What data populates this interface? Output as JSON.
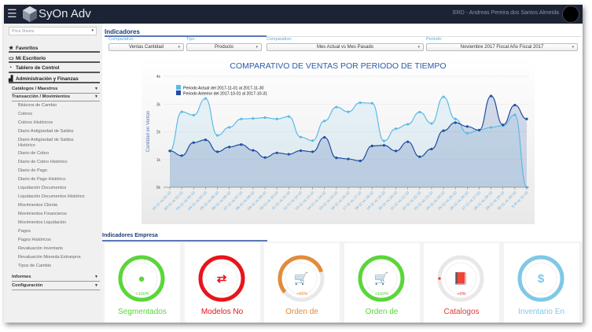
{
  "topbar": {
    "brand": "SyOn Adv",
    "user": "ERD - Andreas Pereira dos Santos Almeida",
    "menu_icon": "hamburger-icon"
  },
  "sidebar": {
    "select": "Price Sheets",
    "nav": [
      {
        "label": "Favoritos",
        "icon": "star-icon"
      },
      {
        "label": "Mi Escritorio",
        "icon": "monitor-icon"
      },
      {
        "label": "Tablero de Control",
        "icon": "gauge-icon"
      },
      {
        "label": "Administración y Finanzas",
        "icon": "chart-icon"
      }
    ],
    "groups": [
      {
        "label": "Catálogos / Maestros"
      },
      {
        "label": "Transacción / Movimientos"
      }
    ],
    "items": [
      "Bitácora de Cambio",
      "Cobros",
      "Cobros Históricos",
      "Diario Antigüedad de Saldos",
      "Diario Antigüedad de Saldos Histórico",
      "Diario de Cobro",
      "Diario de Cobro Histórico",
      "Diario de Pago",
      "Diario de Pago Histórico",
      "Liquidación Documentos",
      "Liquidación Documentos Histórico",
      "Movimientos Cliente",
      "Movimientos Financieros",
      "Movimientos Liquidación",
      "Pagos",
      "Pagos Históricos",
      "Revaluación Inventario",
      "Revaluación Moneda Extranjera",
      "Tipos de Cambio"
    ],
    "bottom": [
      {
        "label": "Informes"
      },
      {
        "label": "Configuración"
      }
    ]
  },
  "indicadores": {
    "title": "Indicadores",
    "filters": [
      {
        "label": "Comparativo:",
        "value": "Ventas Cantidad"
      },
      {
        "label": "Tipo :",
        "value": "Producto"
      },
      {
        "label": "Comparativo:",
        "value": "Mes Actual vs Mes Pasado"
      },
      {
        "label": "Periodo:",
        "value": "Noviembre 2017 Fiscal Año Fiscal 2017"
      }
    ]
  },
  "chart_data": {
    "type": "area",
    "title": "COMPARATIVO DE VENTAS POR PERIODO DE TIEMPO",
    "ylabel": "Cantidad en Ventas",
    "xlabel": "",
    "ylim": [
      0,
      4000
    ],
    "yticks": [
      "0k",
      "1k",
      "2k",
      "3k",
      "4k"
    ],
    "legend": "top-left",
    "grid": true,
    "categories": [
      "01-11 vs 01-10",
      "02-11 vs 02-10",
      "03-11 vs 03-10",
      "04-11 vs 04-10",
      "05-11 vs 05-10",
      "06-11 vs 06-10",
      "07-11 vs 07-10",
      "08-11 vs 08-10",
      "09-11 vs 09-10",
      "10-11 vs 10-10",
      "11-11 vs 11-10",
      "12-11 vs 12-10",
      "13-11 vs 13-10",
      "14-11 vs 14-10",
      "15-11 vs 15-10",
      "16-11 vs 16-10",
      "17-11 vs 17-10",
      "18-11 vs 18-10",
      "19-11 vs 19-10",
      "20-11 vs 20-10",
      "21-11 vs 21-10",
      "22-11 vs 22-10",
      "23-11 vs 23-10",
      "24-11 vs 24-10",
      "25-11 vs 25-10",
      "26-11 vs 26-10",
      "27-11 vs 27-10",
      "28-11 vs 28-10",
      "29-11 vs 29-10",
      "30-11 vs 30-10",
      "S.R vs 31-10"
    ],
    "series": [
      {
        "name": "Periodo Actual del 2017-11-01 al 2017-11-30",
        "color": "#5bbbe8",
        "values": [
          1310,
          2720,
          2600,
          3200,
          1870,
          2160,
          2460,
          2480,
          2510,
          2460,
          2550,
          1810,
          1680,
          2390,
          2890,
          2720,
          3050,
          3030,
          1670,
          2110,
          2270,
          2710,
          2300,
          3260,
          2460,
          1950,
          2060,
          2160,
          2220,
          2610,
          0
        ]
      },
      {
        "name": "Periodo Anterior del 2017-10-01 al 2017-10-31",
        "color": "#1f4ea0",
        "values": [
          1310,
          1140,
          1610,
          1710,
          1280,
          1450,
          1540,
          1330,
          1070,
          1240,
          1190,
          1320,
          1280,
          1800,
          1060,
          1020,
          950,
          1490,
          1510,
          1310,
          1640,
          1100,
          1380,
          2040,
          2330,
          2190,
          2060,
          3290,
          2250,
          2960,
          2460
        ]
      }
    ]
  },
  "empresa": {
    "title": "Indicadores Empresa",
    "cards": [
      {
        "label": "Segmentados",
        "pct": "+100%",
        "fraction": 1.0,
        "color": "#5ad63a",
        "icon": "user-icon",
        "glyph": "●"
      },
      {
        "label": "Modelos No",
        "pct": "",
        "fraction": 1.0,
        "color": "#e8141a",
        "icon": "exchange-icon",
        "glyph": "⇄"
      },
      {
        "label": "Orden de",
        "pct": "+56%",
        "fraction": 0.56,
        "color": "#e38b3a",
        "icon": "cart-icon",
        "glyph": "🛒"
      },
      {
        "label": "Orden de",
        "pct": "+100%",
        "fraction": 1.0,
        "color": "#5ad63a",
        "icon": "cart-icon",
        "glyph": "🛒"
      },
      {
        "label": "Catalogos",
        "pct": "+0%",
        "fraction": 0.0,
        "color": "#e03a3a",
        "icon": "book-icon",
        "glyph": "📕"
      },
      {
        "label": "Inventario En",
        "pct": "",
        "fraction": 1.0,
        "color": "#7fc8e6",
        "icon": "dollar-icon",
        "glyph": "$"
      }
    ]
  }
}
